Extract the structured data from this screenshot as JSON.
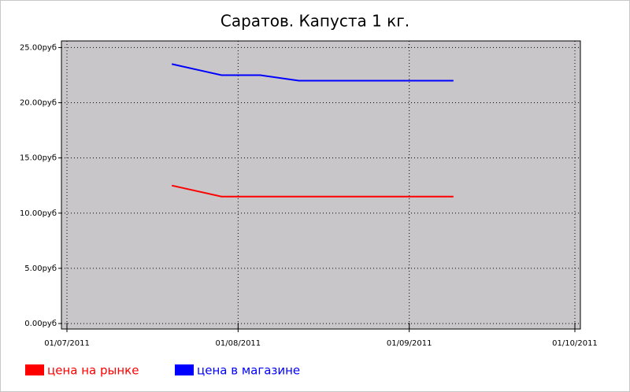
{
  "chart_data": {
    "type": "line",
    "title": "Саратов. Капуста 1 кг.",
    "x": [
      "20/07/2011",
      "29/07/2011",
      "05/08/2011",
      "12/08/2011",
      "19/08/2011",
      "26/08/2011",
      "02/09/2011",
      "09/09/2011"
    ],
    "series": [
      {
        "name": "цена на рынке",
        "color": "#ff0000",
        "values": [
          12.5,
          11.5,
          11.5,
          11.5,
          11.5,
          11.5,
          11.5,
          11.5
        ]
      },
      {
        "name": "цена в магазине",
        "color": "#0000ff",
        "values": [
          23.5,
          22.5,
          22.5,
          22,
          22,
          22,
          22,
          22
        ]
      }
    ],
    "xlim": [
      "30/06/2011",
      "02/10/2011"
    ],
    "xticks": [
      "01/07/2011",
      "01/08/2011",
      "01/09/2011",
      "01/10/2011"
    ],
    "ylim": [
      -0.5,
      25.6
    ],
    "yticks": [
      {
        "value": 0,
        "label": "0.00руб"
      },
      {
        "value": 5,
        "label": "5.00руб"
      },
      {
        "value": 10,
        "label": "10.00руб"
      },
      {
        "value": 15,
        "label": "15.00руб"
      },
      {
        "value": 20,
        "label": "20.00руб"
      },
      {
        "value": 25,
        "label": "25.00руб"
      }
    ],
    "grid": true,
    "legend": "bottom-left",
    "background": "#c8c6c9"
  }
}
